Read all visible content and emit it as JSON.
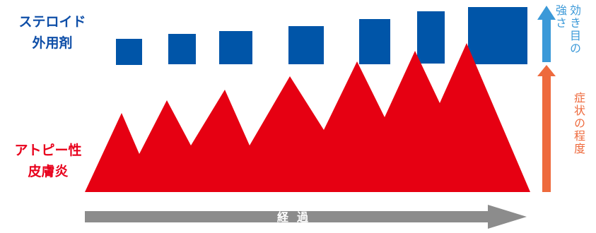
{
  "labels": {
    "steroid_line1": "ステロイド",
    "steroid_line2": "外用剤",
    "atopy_line1": "アトピー性",
    "atopy_line2": "皮膚炎",
    "effect_col1": "効き目の",
    "effect_col2": "強さ",
    "symptom": "症状の程度",
    "time": "経過"
  },
  "colors": {
    "steroid": "#0055a8",
    "atopy": "#e60012",
    "effect_arrow": "#3b99d8",
    "symptom_arrow": "#ee6a3d",
    "time_arrow": "#8c8c8c"
  },
  "icons": {
    "effect_arrow": "arrow-up-icon",
    "symptom_arrow": "arrow-up-icon",
    "time_arrow": "arrow-right-icon"
  }
}
